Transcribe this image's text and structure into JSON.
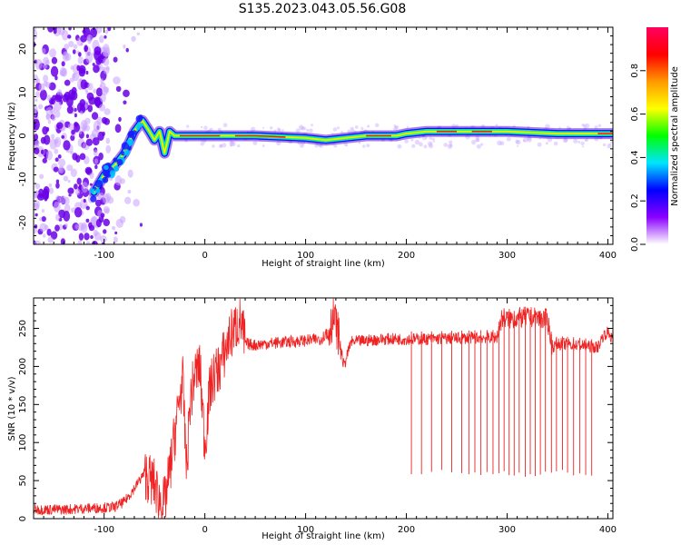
{
  "figure_title": "S135.2023.043.05.56.G08",
  "chart_data": [
    {
      "type": "heatmap",
      "xlabel": "Height of straight line (km)",
      "ylabel": "Frequency (Hz)",
      "xlim": [
        -170,
        405
      ],
      "ylim": [
        -25,
        25
      ],
      "xticks": [
        -100,
        0,
        100,
        200,
        300,
        400
      ],
      "yticks": [
        -20,
        -10,
        0,
        10,
        20
      ],
      "colorbar": {
        "label": "Normalized spectral amplitude",
        "range": [
          0,
          1
        ],
        "ticks": [
          "0.0",
          "0.2",
          "0.4",
          "0.6",
          "0.8"
        ],
        "colors": [
          "#ffffff",
          "#8a00ff",
          "#0000ff",
          "#00e5ff",
          "#00ff00",
          "#ffff00",
          "#ff9900",
          "#ff0000",
          "#ff0060"
        ]
      },
      "ridge": {
        "x": [
          -110,
          -100,
          -90,
          -80,
          -70,
          -62,
          -55,
          -50,
          -45,
          -40,
          -35,
          -30,
          -20,
          0,
          50,
          100,
          120,
          140,
          160,
          190,
          200,
          220,
          250,
          300,
          350,
          405
        ],
        "y": [
          -13,
          -9,
          -7,
          -4,
          1,
          3.5,
          1,
          -1,
          1,
          -4,
          1,
          0,
          0,
          0,
          0,
          -0.5,
          -1,
          -0.5,
          0,
          0,
          0.5,
          1,
          1,
          1,
          0.5,
          0.5
        ]
      }
    },
    {
      "type": "line",
      "xlabel": "Height of straight line (km)",
      "ylabel": "SNR (10 * v/v)",
      "xlim": [
        -170,
        405
      ],
      "ylim": [
        0,
        290
      ],
      "xticks": [
        -100,
        0,
        100,
        200,
        300,
        400
      ],
      "yticks": [
        0,
        50,
        100,
        150,
        200,
        250
      ],
      "color": "#ee2222",
      "series": [
        {
          "x": [
            -170,
            -140,
            -110,
            -90,
            -80,
            -70,
            -60,
            -50,
            -45,
            -40,
            -35,
            -30,
            -25,
            -22,
            -18,
            -15,
            -10,
            -5,
            0,
            5,
            10,
            15,
            20,
            25,
            30,
            35,
            40,
            50,
            60,
            80,
            100,
            115,
            122,
            128,
            133,
            138,
            145,
            160,
            180,
            200,
            220,
            250,
            280,
            290,
            295,
            300,
            320,
            340,
            345,
            350,
            370,
            390,
            395,
            400,
            405
          ],
          "y": [
            12,
            12,
            14,
            15,
            22,
            40,
            60,
            45,
            25,
            20,
            60,
            110,
            160,
            180,
            60,
            150,
            190,
            200,
            95,
            170,
            190,
            200,
            220,
            240,
            250,
            262,
            230,
            228,
            230,
            232,
            234,
            236,
            245,
            265,
            240,
            200,
            232,
            234,
            236,
            236,
            236,
            237,
            238,
            238,
            265,
            262,
            265,
            262,
            225,
            230,
            228,
            225,
            240,
            245,
            235
          ]
        }
      ],
      "dropouts": {
        "x": [
          205,
          215,
          225,
          235,
          245,
          255,
          262,
          268,
          274,
          280,
          286,
          292,
          297,
          302,
          307,
          312,
          318,
          323,
          328,
          333,
          338,
          344,
          349,
          355,
          360,
          366,
          372,
          378,
          384
        ],
        "min": 55
      }
    }
  ]
}
